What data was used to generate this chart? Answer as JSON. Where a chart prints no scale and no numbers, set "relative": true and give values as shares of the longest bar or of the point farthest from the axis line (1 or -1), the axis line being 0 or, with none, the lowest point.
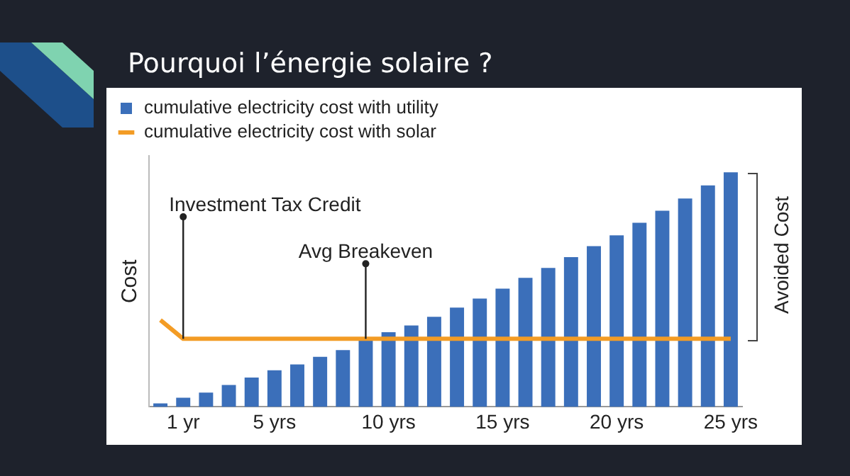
{
  "chart_data": {
    "type": "bar",
    "title": "Pourquoi l’énergie solaire ?",
    "ylabel": "Cost",
    "relative": true,
    "legend": "top left",
    "grid": false,
    "categories": [
      null,
      "1 yr",
      null,
      null,
      null,
      "5 yrs",
      null,
      null,
      null,
      null,
      "10 yrs",
      null,
      null,
      null,
      null,
      "15 yrs",
      null,
      null,
      null,
      null,
      "20 yrs",
      null,
      null,
      null,
      null,
      "25 yrs"
    ],
    "series": [
      {
        "name": "cumulative electricity cost with utility",
        "color": "#3b6fba",
        "values": [
          0.015,
          0.039,
          0.061,
          0.093,
          0.125,
          0.156,
          0.181,
          0.213,
          0.242,
          0.291,
          0.318,
          0.347,
          0.384,
          0.423,
          0.462,
          0.504,
          0.55,
          0.592,
          0.638,
          0.685,
          0.731,
          0.785,
          0.836,
          0.888,
          0.944,
          1
        ]
      },
      {
        "name": "cumulative electricity cost with solar",
        "type": "line",
        "color": "#f39c25",
        "values": [
          0.37,
          0.29,
          0.29,
          0.29,
          0.29,
          0.29,
          0.29,
          0.29,
          0.29,
          0.29,
          0.29,
          0.29,
          0.29,
          0.29,
          0.29,
          0.29,
          0.29,
          0.29,
          0.29,
          0.29,
          0.29,
          0.29,
          0.29,
          0.29,
          0.29,
          0.29
        ]
      }
    ],
    "annotations": [
      {
        "text": "Investment Tax Credit",
        "x": "1 yr",
        "y": 0.29
      },
      "Avg Breakeven",
      "Avoided Cost"
    ]
  }
}
